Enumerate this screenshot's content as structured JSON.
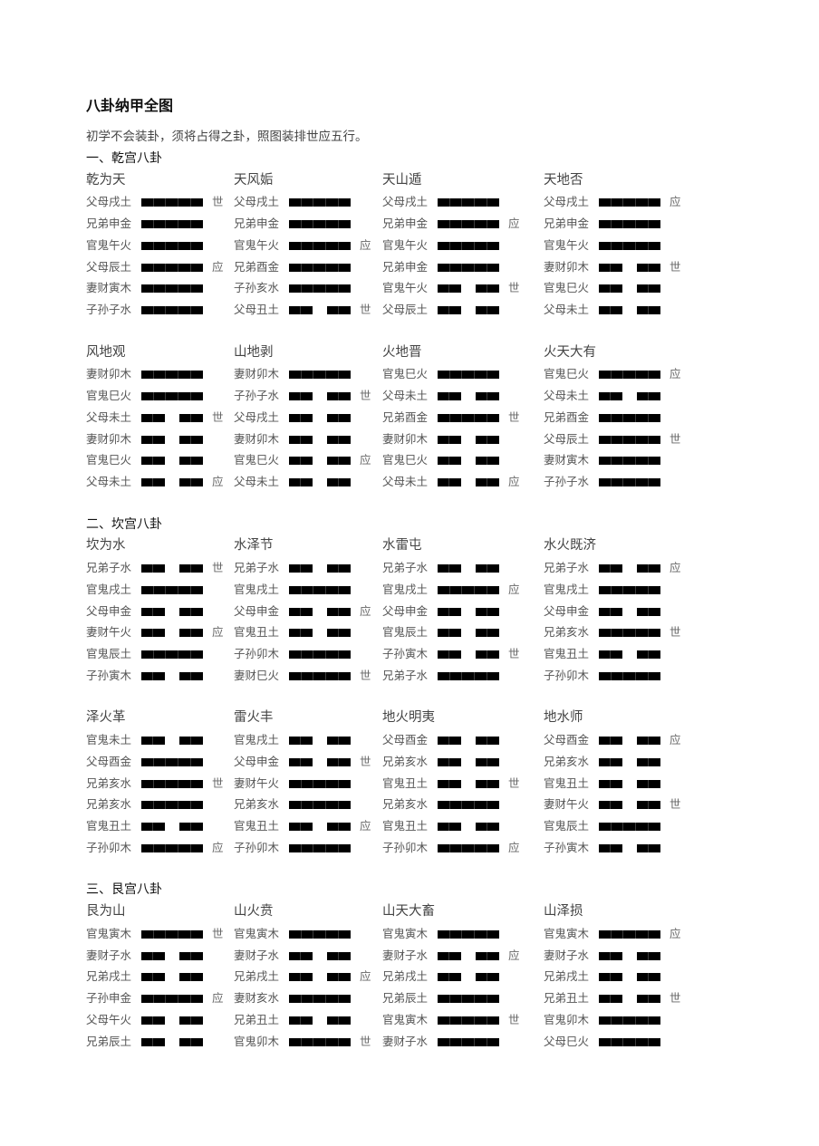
{
  "title": "八卦纳甲全图",
  "intro": "初学不会装卦，须将占得之卦，照图装排世应五行。",
  "line_color": "#000000",
  "sections": [
    {
      "heading": "一、乾宫八卦",
      "groups": [
        [
          {
            "name": "乾为天",
            "lines": [
              [
                "父母戌土",
                1,
                "世"
              ],
              [
                "兄弟申金",
                1,
                ""
              ],
              [
                "官鬼午火",
                1,
                ""
              ],
              [
                "父母辰土",
                1,
                "应"
              ],
              [
                "妻财寅木",
                1,
                ""
              ],
              [
                "子孙子水",
                1,
                ""
              ]
            ]
          },
          {
            "name": "天风姤",
            "lines": [
              [
                "父母戌土",
                1,
                ""
              ],
              [
                "兄弟申金",
                1,
                ""
              ],
              [
                "官鬼午火",
                1,
                "应"
              ],
              [
                "兄弟酉金",
                1,
                ""
              ],
              [
                "子孙亥水",
                1,
                ""
              ],
              [
                "父母丑土",
                0,
                "世"
              ]
            ]
          },
          {
            "name": "天山遁",
            "lines": [
              [
                "父母戌土",
                1,
                ""
              ],
              [
                "兄弟申金",
                1,
                "应"
              ],
              [
                "官鬼午火",
                1,
                ""
              ],
              [
                "兄弟申金",
                1,
                ""
              ],
              [
                "官鬼午火",
                0,
                "世"
              ],
              [
                "父母辰土",
                0,
                ""
              ]
            ]
          },
          {
            "name": "天地否",
            "lines": [
              [
                "父母戌土",
                1,
                "应"
              ],
              [
                "兄弟申金",
                1,
                ""
              ],
              [
                "官鬼午火",
                1,
                ""
              ],
              [
                "妻财卯木",
                0,
                "世"
              ],
              [
                "官鬼巳火",
                0,
                ""
              ],
              [
                "父母未土",
                0,
                ""
              ]
            ]
          }
        ],
        [
          {
            "name": "风地观",
            "lines": [
              [
                "妻财卯木",
                1,
                ""
              ],
              [
                "官鬼巳火",
                1,
                ""
              ],
              [
                "父母未土",
                0,
                "世"
              ],
              [
                "妻财卯木",
                0,
                ""
              ],
              [
                "官鬼巳火",
                0,
                ""
              ],
              [
                "父母未土",
                0,
                "应"
              ]
            ]
          },
          {
            "name": "山地剥",
            "lines": [
              [
                "妻财卯木",
                1,
                ""
              ],
              [
                "子孙子水",
                0,
                "世"
              ],
              [
                "父母戌土",
                0,
                ""
              ],
              [
                "妻财卯木",
                0,
                ""
              ],
              [
                "官鬼巳火",
                0,
                "应"
              ],
              [
                "父母未土",
                0,
                ""
              ]
            ]
          },
          {
            "name": "火地晋",
            "lines": [
              [
                "官鬼巳火",
                1,
                ""
              ],
              [
                "父母未土",
                0,
                ""
              ],
              [
                "兄弟酉金",
                1,
                "世"
              ],
              [
                "妻财卯木",
                0,
                ""
              ],
              [
                "官鬼巳火",
                0,
                ""
              ],
              [
                "父母未土",
                0,
                "应"
              ]
            ]
          },
          {
            "name": "火天大有",
            "lines": [
              [
                "官鬼巳火",
                1,
                "应"
              ],
              [
                "父母未土",
                0,
                ""
              ],
              [
                "兄弟酉金",
                1,
                ""
              ],
              [
                "父母辰土",
                1,
                "世"
              ],
              [
                "妻财寅木",
                1,
                ""
              ],
              [
                "子孙子水",
                1,
                ""
              ]
            ]
          }
        ]
      ]
    },
    {
      "heading": "二、坎宫八卦",
      "groups": [
        [
          {
            "name": "坎为水",
            "lines": [
              [
                "兄弟子水",
                0,
                "世"
              ],
              [
                "官鬼戌土",
                1,
                ""
              ],
              [
                "父母申金",
                0,
                ""
              ],
              [
                "妻财午火",
                0,
                "应"
              ],
              [
                "官鬼辰土",
                1,
                ""
              ],
              [
                "子孙寅木",
                0,
                ""
              ]
            ]
          },
          {
            "name": "水泽节",
            "lines": [
              [
                "兄弟子水",
                0,
                ""
              ],
              [
                "官鬼戌土",
                1,
                ""
              ],
              [
                "父母申金",
                0,
                "应"
              ],
              [
                "官鬼丑土",
                0,
                ""
              ],
              [
                "子孙卯木",
                1,
                ""
              ],
              [
                "妻财巳火",
                1,
                "世"
              ]
            ]
          },
          {
            "name": "水雷屯",
            "lines": [
              [
                "兄弟子水",
                0,
                ""
              ],
              [
                "官鬼戌土",
                1,
                "应"
              ],
              [
                "父母申金",
                0,
                ""
              ],
              [
                "官鬼辰土",
                0,
                ""
              ],
              [
                "子孙寅木",
                0,
                "世"
              ],
              [
                "兄弟子水",
                1,
                ""
              ]
            ]
          },
          {
            "name": "水火既济",
            "lines": [
              [
                "兄弟子水",
                0,
                "应"
              ],
              [
                "官鬼戌土",
                1,
                ""
              ],
              [
                "父母申金",
                0,
                ""
              ],
              [
                "兄弟亥水",
                1,
                "世"
              ],
              [
                "官鬼丑土",
                0,
                ""
              ],
              [
                "子孙卯木",
                1,
                ""
              ]
            ]
          }
        ],
        [
          {
            "name": "泽火革",
            "lines": [
              [
                "官鬼未土",
                0,
                ""
              ],
              [
                "父母酉金",
                1,
                ""
              ],
              [
                "兄弟亥水",
                1,
                "世"
              ],
              [
                "兄弟亥水",
                1,
                ""
              ],
              [
                "官鬼丑土",
                0,
                ""
              ],
              [
                "子孙卯木",
                1,
                "应"
              ]
            ]
          },
          {
            "name": "雷火丰",
            "lines": [
              [
                "官鬼戌土",
                0,
                ""
              ],
              [
                "父母申金",
                0,
                "世"
              ],
              [
                "妻财午火",
                1,
                ""
              ],
              [
                "兄弟亥水",
                1,
                ""
              ],
              [
                "官鬼丑土",
                0,
                "应"
              ],
              [
                "子孙卯木",
                1,
                ""
              ]
            ]
          },
          {
            "name": "地火明夷",
            "lines": [
              [
                "父母酉金",
                0,
                ""
              ],
              [
                "兄弟亥水",
                0,
                ""
              ],
              [
                "官鬼丑土",
                0,
                "世"
              ],
              [
                "兄弟亥水",
                1,
                ""
              ],
              [
                "官鬼丑土",
                0,
                ""
              ],
              [
                "子孙卯木",
                1,
                "应"
              ]
            ]
          },
          {
            "name": "地水师",
            "lines": [
              [
                "父母酉金",
                0,
                "应"
              ],
              [
                "兄弟亥水",
                0,
                ""
              ],
              [
                "官鬼丑土",
                0,
                ""
              ],
              [
                "妻财午火",
                0,
                "世"
              ],
              [
                "官鬼辰土",
                1,
                ""
              ],
              [
                "子孙寅木",
                0,
                ""
              ]
            ]
          }
        ]
      ]
    },
    {
      "heading": "三、艮宫八卦",
      "groups": [
        [
          {
            "name": "艮为山",
            "lines": [
              [
                "官鬼寅木",
                1,
                "世"
              ],
              [
                "妻财子水",
                0,
                ""
              ],
              [
                "兄弟戌土",
                0,
                ""
              ],
              [
                "子孙申金",
                1,
                "应"
              ],
              [
                "父母午火",
                0,
                ""
              ],
              [
                "兄弟辰土",
                0,
                ""
              ]
            ]
          },
          {
            "name": "山火贲",
            "lines": [
              [
                "官鬼寅木",
                1,
                ""
              ],
              [
                "妻财子水",
                0,
                ""
              ],
              [
                "兄弟戌土",
                0,
                "应"
              ],
              [
                "妻财亥水",
                1,
                ""
              ],
              [
                "兄弟丑土",
                0,
                ""
              ],
              [
                "官鬼卯木",
                1,
                "世"
              ]
            ]
          },
          {
            "name": "山天大畜",
            "lines": [
              [
                "官鬼寅木",
                1,
                ""
              ],
              [
                "妻财子水",
                0,
                "应"
              ],
              [
                "兄弟戌土",
                0,
                ""
              ],
              [
                "兄弟辰土",
                1,
                ""
              ],
              [
                "官鬼寅木",
                1,
                "世"
              ],
              [
                "妻财子水",
                1,
                ""
              ]
            ]
          },
          {
            "name": "山泽损",
            "lines": [
              [
                "官鬼寅木",
                1,
                "应"
              ],
              [
                "妻财子水",
                0,
                ""
              ],
              [
                "兄弟戌土",
                0,
                ""
              ],
              [
                "兄弟丑土",
                0,
                "世"
              ],
              [
                "官鬼卯木",
                1,
                ""
              ],
              [
                "父母巳火",
                1,
                ""
              ]
            ]
          }
        ]
      ]
    }
  ]
}
